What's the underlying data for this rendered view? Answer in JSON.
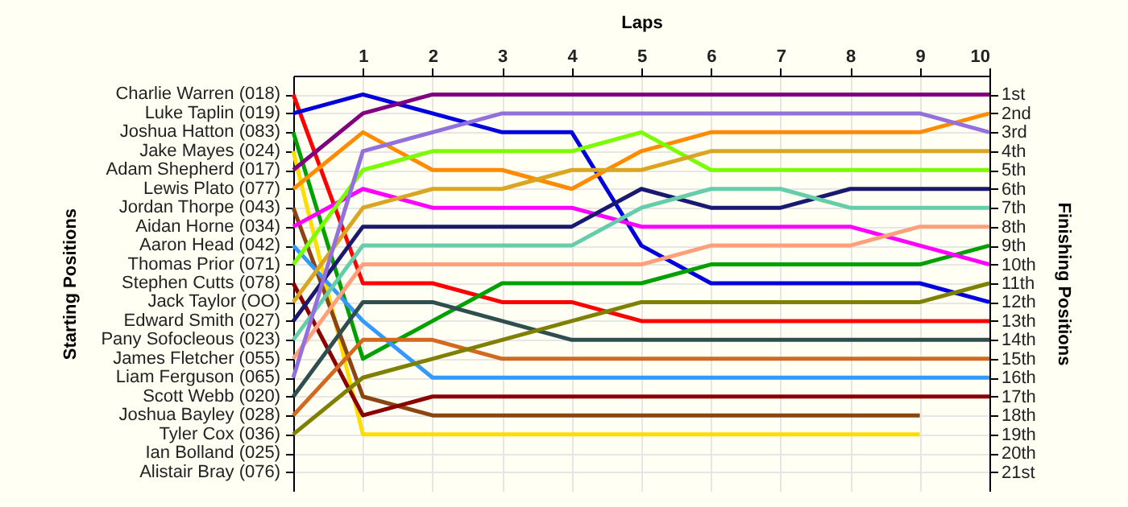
{
  "chart_data": {
    "type": "line",
    "xlabel": "Laps",
    "ylabel": "Finishing Positions",
    "x": [
      0,
      1,
      2,
      3,
      4,
      5,
      6,
      7,
      8,
      9,
      10
    ],
    "xlim": [
      0,
      10
    ],
    "xticks": [
      1,
      2,
      3,
      4,
      5,
      6,
      7,
      8,
      9,
      10
    ],
    "ylim": [
      22,
      0
    ],
    "yticks": [
      {
        "value": 1,
        "label": "1st"
      },
      {
        "value": 2,
        "label": "2nd"
      },
      {
        "value": 3,
        "label": "3rd"
      },
      {
        "value": 4,
        "label": "4th"
      },
      {
        "value": 5,
        "label": "5th"
      },
      {
        "value": 6,
        "label": "6th"
      },
      {
        "value": 7,
        "label": "7th"
      },
      {
        "value": 8,
        "label": "8th"
      },
      {
        "value": 9,
        "label": "9th"
      },
      {
        "value": 10,
        "label": "10th"
      },
      {
        "value": 11,
        "label": "11th"
      },
      {
        "value": 12,
        "label": "12th"
      },
      {
        "value": 13,
        "label": "13th"
      },
      {
        "value": 14,
        "label": "14th"
      },
      {
        "value": 15,
        "label": "15th"
      },
      {
        "value": 16,
        "label": "16th"
      },
      {
        "value": 17,
        "label": "17th"
      },
      {
        "value": 18,
        "label": "18th"
      },
      {
        "value": 19,
        "label": "19th"
      },
      {
        "value": 20,
        "label": "20th"
      },
      {
        "value": 21,
        "label": "21st"
      }
    ],
    "annotations": [
      "Starting Positions",
      "Charlie Warren (018)",
      "Luke Taplin (019)",
      "Joshua Hatton (083)",
      "Jake Mayes (024)",
      "Adam Shepherd (017)",
      "Lewis Plato (077)",
      "Jordan Thorpe (043)",
      "Aidan Horne (034)",
      "Aaron Head (042)",
      "Thomas Prior (071)",
      "Stephen Cutts (078)",
      "Jack Taylor (OO)",
      "Edward Smith (027)",
      "Pany Sofocleous (023)",
      "James Fletcher (055)",
      "Liam Ferguson (065)",
      "Scott Webb (020)",
      "Joshua Bayley (028)",
      "Tyler Cox (036)",
      "Ian Bolland (025)",
      "Alistair Bray (076)"
    ],
    "grid": true,
    "series": [
      {
        "color": "#ff0000",
        "values": [
          1,
          11,
          11,
          12,
          12,
          13,
          13,
          13,
          13,
          13,
          13
        ]
      },
      {
        "color": "#0000dd",
        "values": [
          2,
          1,
          2,
          3,
          3,
          9,
          11,
          11,
          11,
          11,
          12
        ]
      },
      {
        "color": "#00a000",
        "values": [
          3,
          15,
          13,
          11,
          11,
          11,
          10,
          10,
          10,
          10,
          9
        ]
      },
      {
        "color": "#ffdd00",
        "values": [
          4,
          19,
          19,
          19,
          19,
          19,
          19,
          19,
          19,
          19,
          null
        ]
      },
      {
        "color": "#800080",
        "values": [
          5,
          2,
          1,
          1,
          1,
          1,
          1,
          1,
          1,
          1,
          1
        ]
      },
      {
        "color": "#ff8c00",
        "values": [
          6,
          3,
          5,
          5,
          6,
          4,
          3,
          3,
          3,
          3,
          2
        ]
      },
      {
        "color": "#8b4513",
        "values": [
          7,
          17,
          18,
          18,
          18,
          18,
          18,
          18,
          18,
          18,
          null
        ]
      },
      {
        "color": "#ff00ff",
        "values": [
          8,
          6,
          7,
          7,
          7,
          8,
          8,
          8,
          8,
          9,
          10
        ]
      },
      {
        "color": "#3399ff",
        "values": [
          9,
          13,
          16,
          16,
          16,
          16,
          16,
          16,
          16,
          16,
          16
        ]
      },
      {
        "color": "#7cfc00",
        "values": [
          10,
          5,
          4,
          4,
          4,
          3,
          5,
          5,
          5,
          5,
          5
        ]
      },
      {
        "color": "#8b0000",
        "values": [
          11,
          18,
          17,
          17,
          17,
          17,
          17,
          17,
          17,
          17,
          17
        ]
      },
      {
        "color": "#daa520",
        "values": [
          12,
          7,
          6,
          6,
          5,
          5,
          4,
          4,
          4,
          4,
          4
        ]
      },
      {
        "color": "#191970",
        "values": [
          13,
          8,
          8,
          8,
          8,
          6,
          7,
          7,
          6,
          6,
          6
        ]
      },
      {
        "color": "#66cdaa",
        "values": [
          14,
          9,
          9,
          9,
          9,
          7,
          6,
          6,
          7,
          7,
          7
        ]
      },
      {
        "color": "#ffa07a",
        "values": [
          15,
          10,
          10,
          10,
          10,
          10,
          9,
          9,
          9,
          8,
          8
        ]
      },
      {
        "color": "#9370db",
        "values": [
          16,
          4,
          3,
          2,
          2,
          2,
          2,
          2,
          2,
          2,
          3
        ]
      },
      {
        "color": "#2f4f4f",
        "values": [
          17,
          12,
          12,
          13,
          14,
          14,
          14,
          14,
          14,
          14,
          14
        ]
      },
      {
        "color": "#d2691e",
        "values": [
          18,
          14,
          14,
          15,
          15,
          15,
          15,
          15,
          15,
          15,
          15
        ]
      },
      {
        "color": "#808000",
        "values": [
          19,
          16,
          15,
          14,
          13,
          12,
          12,
          12,
          12,
          12,
          11
        ]
      }
    ]
  }
}
